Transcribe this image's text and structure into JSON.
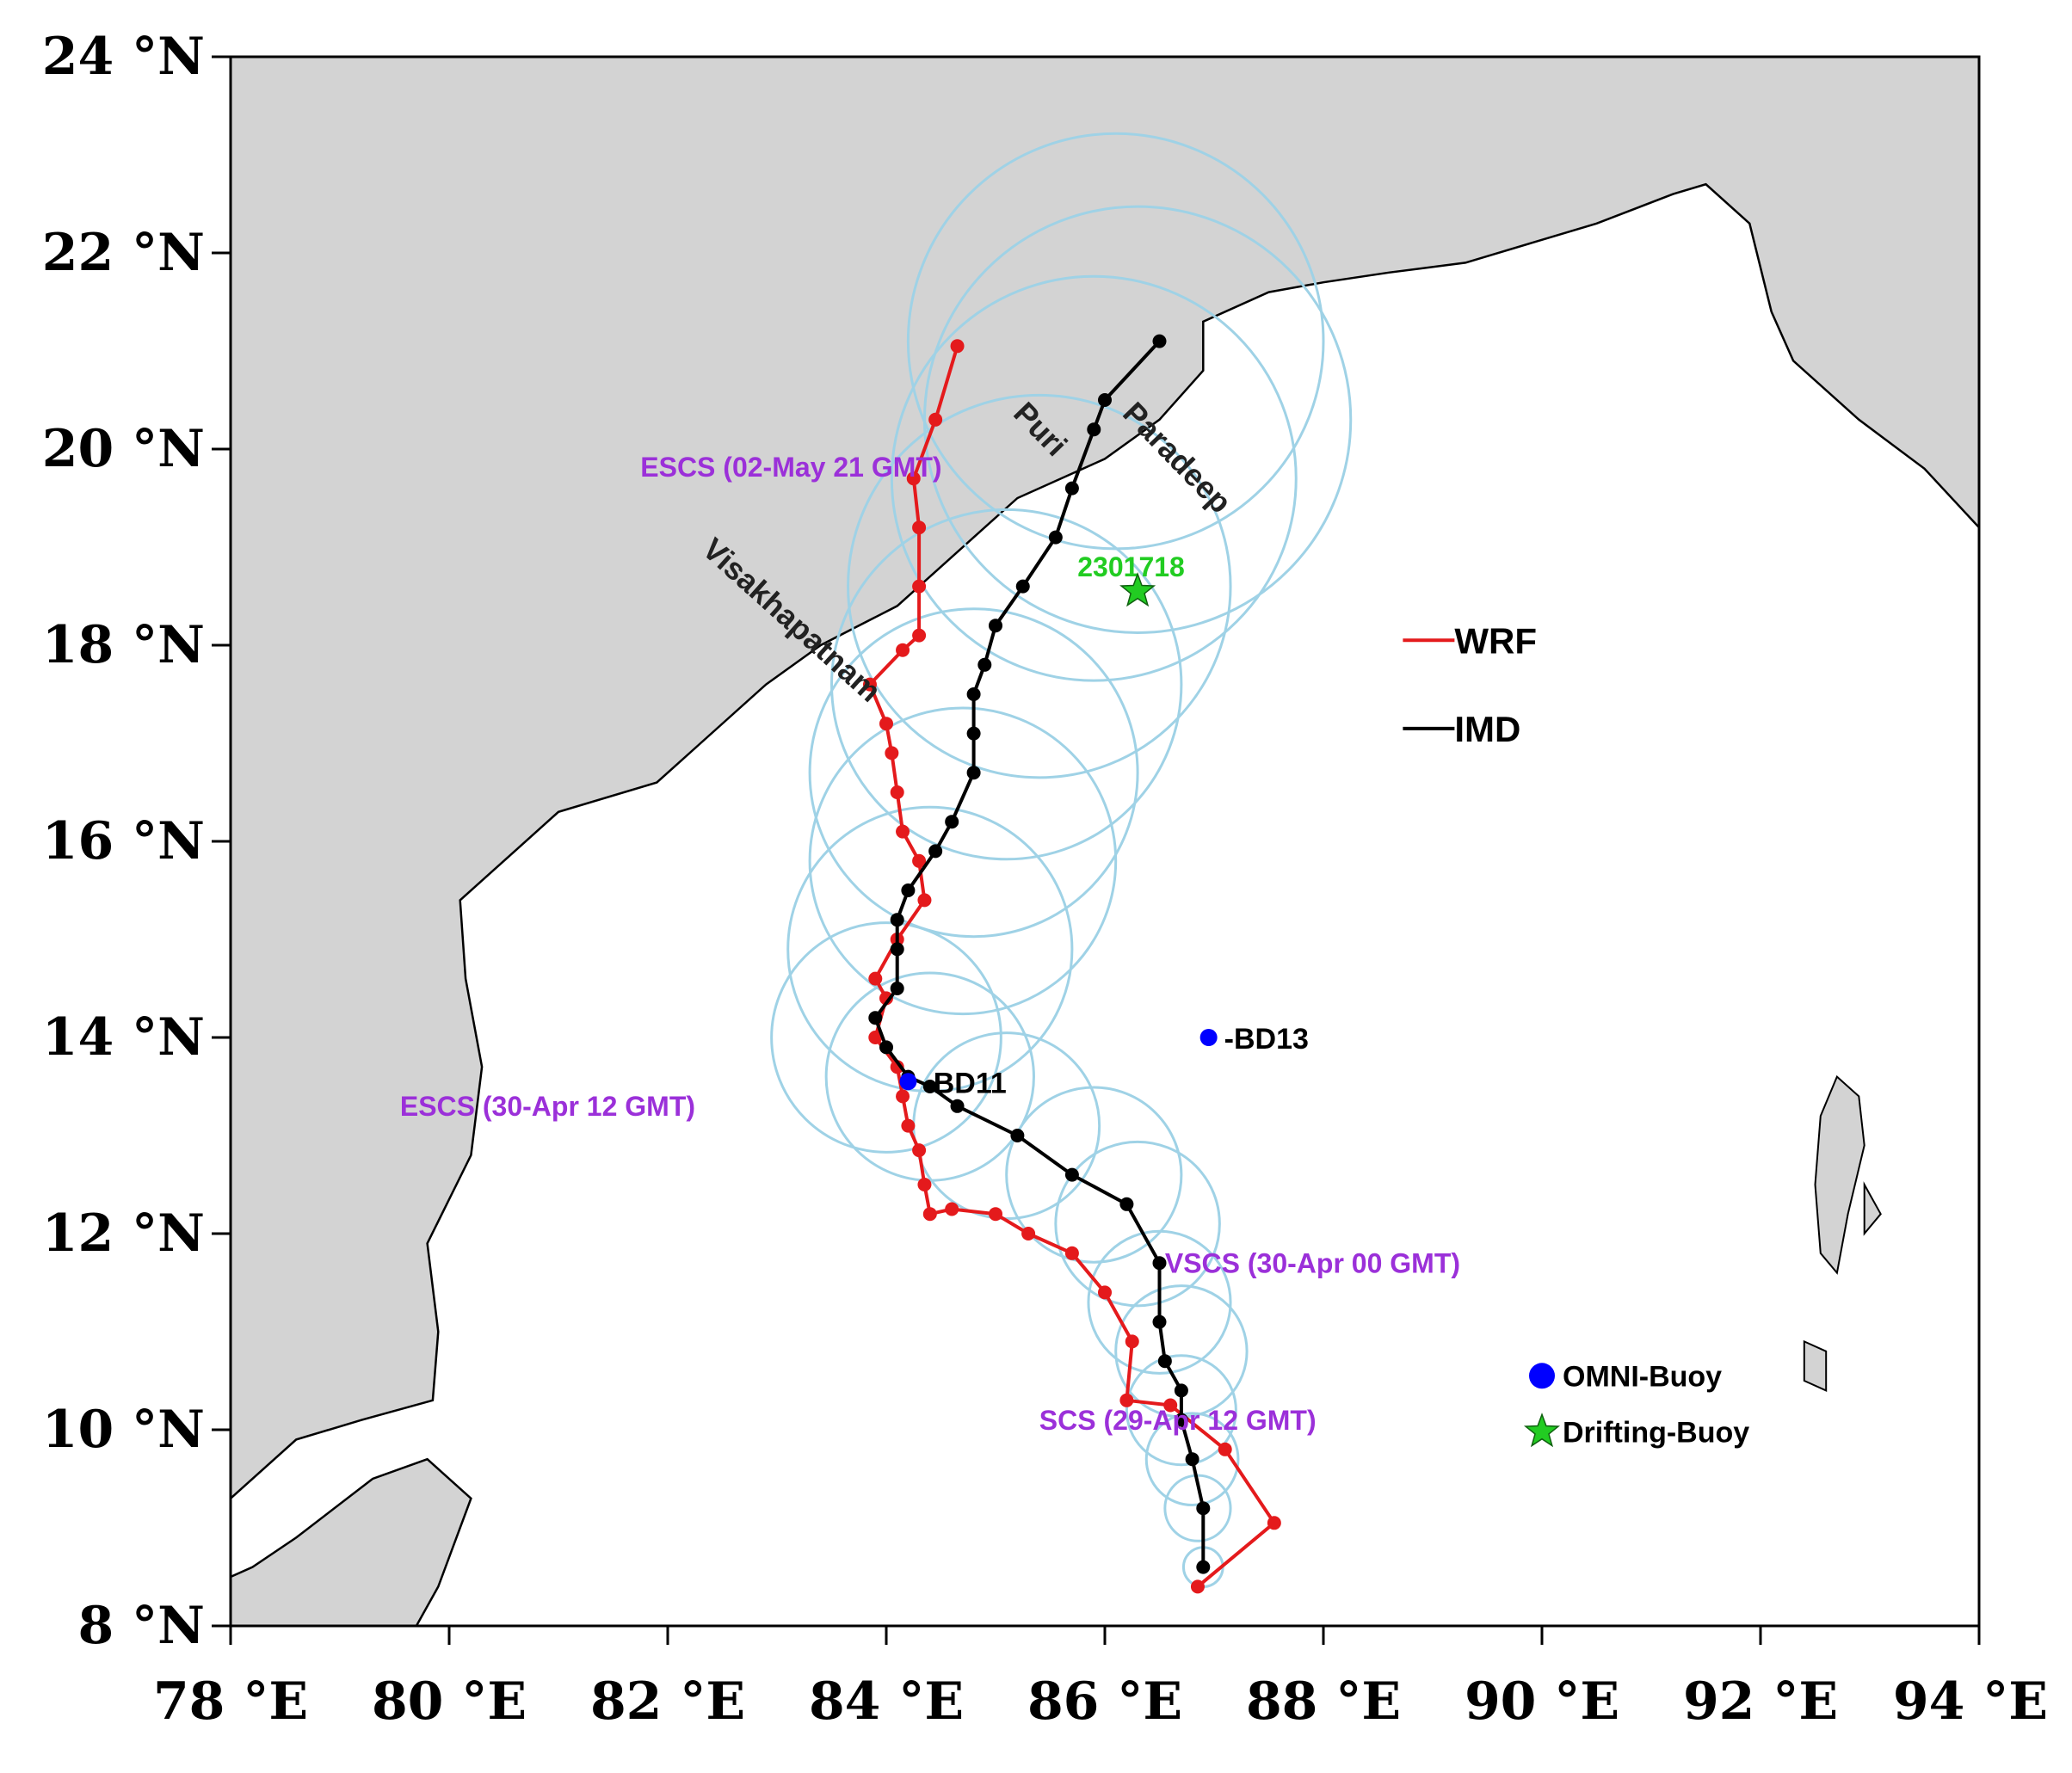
{
  "map": {
    "extent": {
      "lon": [
        78,
        94
      ],
      "lat": [
        8,
        24
      ]
    },
    "lat_ticks": [
      {
        "value": 8,
        "label": "8 °N"
      },
      {
        "value": 10,
        "label": "10 °N"
      },
      {
        "value": 12,
        "label": "12 °N"
      },
      {
        "value": 14,
        "label": "14 °N"
      },
      {
        "value": 16,
        "label": "16 °N"
      },
      {
        "value": 18,
        "label": "18 °N"
      },
      {
        "value": 20,
        "label": "20 °N"
      },
      {
        "value": 22,
        "label": "22 °N"
      },
      {
        "value": 24,
        "label": "24 °N"
      }
    ],
    "lon_ticks": [
      {
        "value": 78,
        "label": "78 °E"
      },
      {
        "value": 80,
        "label": "80 °E"
      },
      {
        "value": 82,
        "label": "82 °E"
      },
      {
        "value": 84,
        "label": "84 °E"
      },
      {
        "value": 86,
        "label": "86 °E"
      },
      {
        "value": 88,
        "label": "88 °E"
      },
      {
        "value": 90,
        "label": "90 °E"
      },
      {
        "value": 92,
        "label": "92 °E"
      },
      {
        "value": 94,
        "label": "94 °E"
      }
    ],
    "colors": {
      "land": "#d3d3d3",
      "sea": "#ffffff",
      "coast": "#000000",
      "uncertainty": "#9fd2e6"
    },
    "land_west": [
      [
        78,
        8
      ],
      [
        78,
        9.3
      ],
      [
        78.6,
        9.9
      ],
      [
        79.2,
        10.1
      ],
      [
        79.85,
        10.3
      ],
      [
        79.9,
        11.0
      ],
      [
        79.8,
        11.9
      ],
      [
        80.2,
        12.8
      ],
      [
        80.3,
        13.7
      ],
      [
        80.15,
        14.6
      ],
      [
        80.1,
        15.4
      ],
      [
        80.6,
        15.9
      ],
      [
        81.0,
        16.3
      ],
      [
        81.9,
        16.6
      ],
      [
        82.3,
        17.0
      ],
      [
        82.9,
        17.6
      ],
      [
        83.4,
        18.0
      ],
      [
        84.1,
        18.4
      ],
      [
        84.8,
        19.1
      ],
      [
        85.2,
        19.5
      ],
      [
        86.0,
        19.9
      ],
      [
        86.5,
        20.3
      ],
      [
        86.9,
        20.8
      ],
      [
        86.9,
        21.3
      ],
      [
        87.5,
        21.6
      ],
      [
        88.0,
        21.7
      ],
      [
        88.6,
        21.8
      ],
      [
        89.3,
        21.9
      ],
      [
        89.9,
        22.1
      ],
      [
        90.5,
        22.3
      ],
      [
        91.2,
        22.6
      ],
      [
        91.5,
        22.7
      ],
      [
        91.9,
        22.3
      ],
      [
        92.1,
        21.4
      ],
      [
        92.3,
        20.9
      ],
      [
        92.9,
        20.3
      ],
      [
        93.5,
        19.8
      ],
      [
        94.0,
        19.2
      ],
      [
        94,
        24
      ],
      [
        78,
        24
      ]
    ],
    "land_srilanka": [
      [
        78,
        8
      ],
      [
        79.7,
        8
      ],
      [
        79.9,
        8.4
      ],
      [
        80.2,
        9.3
      ],
      [
        79.8,
        9.7
      ],
      [
        79.3,
        9.5
      ],
      [
        78.6,
        8.9
      ],
      [
        78.2,
        8.6
      ],
      [
        78,
        8.5
      ]
    ],
    "andaman_islands": [
      [
        [
          92.7,
          13.6
        ],
        [
          92.9,
          13.4
        ],
        [
          92.95,
          12.9
        ],
        [
          92.8,
          12.2
        ],
        [
          92.7,
          11.6
        ],
        [
          92.55,
          11.8
        ],
        [
          92.5,
          12.5
        ],
        [
          92.55,
          13.2
        ]
      ],
      [
        [
          92.4,
          10.9
        ],
        [
          92.6,
          10.8
        ],
        [
          92.6,
          10.4
        ],
        [
          92.4,
          10.5
        ]
      ],
      [
        [
          92.95,
          12.5
        ],
        [
          93.1,
          12.2
        ],
        [
          92.95,
          12.0
        ]
      ]
    ],
    "uncertainty_circles": [
      {
        "lon": 86.9,
        "lat": 8.6,
        "r": 0.18
      },
      {
        "lon": 86.85,
        "lat": 9.2,
        "r": 0.3
      },
      {
        "lon": 86.8,
        "lat": 9.7,
        "r": 0.42
      },
      {
        "lon": 86.7,
        "lat": 10.2,
        "r": 0.5
      },
      {
        "lon": 86.7,
        "lat": 10.8,
        "r": 0.6
      },
      {
        "lon": 86.5,
        "lat": 11.3,
        "r": 0.65
      },
      {
        "lon": 86.3,
        "lat": 12.1,
        "r": 0.75
      },
      {
        "lon": 85.9,
        "lat": 12.6,
        "r": 0.8
      },
      {
        "lon": 85.1,
        "lat": 13.1,
        "r": 0.85
      },
      {
        "lon": 84.4,
        "lat": 13.6,
        "r": 0.95
      },
      {
        "lon": 84.0,
        "lat": 14.0,
        "r": 1.05
      },
      {
        "lon": 84.4,
        "lat": 14.9,
        "r": 1.3
      },
      {
        "lon": 84.7,
        "lat": 15.8,
        "r": 1.4
      },
      {
        "lon": 84.8,
        "lat": 16.7,
        "r": 1.5
      },
      {
        "lon": 85.1,
        "lat": 17.6,
        "r": 1.6
      },
      {
        "lon": 85.4,
        "lat": 18.6,
        "r": 1.75
      },
      {
        "lon": 85.9,
        "lat": 19.7,
        "r": 1.85
      },
      {
        "lon": 86.3,
        "lat": 20.3,
        "r": 1.95
      },
      {
        "lon": 86.1,
        "lat": 21.1,
        "r": 1.9
      }
    ],
    "tracks": [
      {
        "name": "WRF",
        "color": "#e41a1c",
        "points": [
          [
            86.85,
            8.4
          ],
          [
            87.55,
            9.05
          ],
          [
            87.1,
            9.8
          ],
          [
            86.6,
            10.25
          ],
          [
            86.2,
            10.3
          ],
          [
            86.25,
            10.9
          ],
          [
            86.0,
            11.4
          ],
          [
            85.7,
            11.8
          ],
          [
            85.3,
            12.0
          ],
          [
            85.0,
            12.2
          ],
          [
            84.6,
            12.25
          ],
          [
            84.4,
            12.2
          ],
          [
            84.35,
            12.5
          ],
          [
            84.3,
            12.85
          ],
          [
            84.2,
            13.1
          ],
          [
            84.15,
            13.4
          ],
          [
            84.1,
            13.7
          ],
          [
            83.9,
            14.0
          ],
          [
            84.0,
            14.4
          ],
          [
            83.9,
            14.6
          ],
          [
            84.1,
            15.0
          ],
          [
            84.35,
            15.4
          ],
          [
            84.3,
            15.8
          ],
          [
            84.15,
            16.1
          ],
          [
            84.1,
            16.5
          ],
          [
            84.05,
            16.9
          ],
          [
            84.0,
            17.2
          ],
          [
            83.85,
            17.6
          ],
          [
            84.15,
            17.95
          ],
          [
            84.3,
            18.1
          ],
          [
            84.3,
            18.6
          ],
          [
            84.3,
            19.2
          ],
          [
            84.25,
            19.7
          ],
          [
            84.45,
            20.3
          ],
          [
            84.65,
            21.05
          ]
        ]
      },
      {
        "name": "IMD",
        "color": "#000000",
        "points": [
          [
            86.9,
            8.6
          ],
          [
            86.9,
            9.2
          ],
          [
            86.8,
            9.7
          ],
          [
            86.7,
            10.1
          ],
          [
            86.7,
            10.4
          ],
          [
            86.55,
            10.7
          ],
          [
            86.5,
            11.1
          ],
          [
            86.5,
            11.7
          ],
          [
            86.2,
            12.3
          ],
          [
            85.7,
            12.6
          ],
          [
            85.2,
            13.0
          ],
          [
            84.65,
            13.3
          ],
          [
            84.4,
            13.5
          ],
          [
            84.2,
            13.6
          ],
          [
            84.0,
            13.9
          ],
          [
            83.9,
            14.2
          ],
          [
            84.1,
            14.5
          ],
          [
            84.1,
            14.9
          ],
          [
            84.1,
            15.2
          ],
          [
            84.2,
            15.5
          ],
          [
            84.45,
            15.9
          ],
          [
            84.6,
            16.2
          ],
          [
            84.8,
            16.7
          ],
          [
            84.8,
            17.1
          ],
          [
            84.8,
            17.5
          ],
          [
            84.9,
            17.8
          ],
          [
            85.0,
            18.2
          ],
          [
            85.25,
            18.6
          ],
          [
            85.55,
            19.1
          ],
          [
            85.7,
            19.6
          ],
          [
            85.9,
            20.2
          ],
          [
            86.0,
            20.5
          ],
          [
            86.5,
            21.1
          ]
        ]
      }
    ],
    "place_labels": [
      {
        "text": "Puri",
        "lon": 85.15,
        "lat": 20.35,
        "angle": 46
      },
      {
        "text": "Paradeep",
        "lon": 86.15,
        "lat": 20.35,
        "angle": 46
      },
      {
        "text": "Visakhapatnam",
        "lon": 82.3,
        "lat": 18.95,
        "angle": 42
      }
    ],
    "event_labels": [
      {
        "text": "ESCS  (02-May  21 GMT)",
        "lon": 81.75,
        "lat": 19.72,
        "color": "#9b30d9"
      },
      {
        "text": "ESCS (30-Apr 12 GMT)",
        "lon": 79.55,
        "lat": 13.2,
        "color": "#9b30d9"
      },
      {
        "text": "VSCS (30-Apr 00 GMT)",
        "lon": 86.55,
        "lat": 11.6,
        "color": "#9b30d9"
      },
      {
        "text": "SCS (29-Apr 12 GMT)",
        "lon": 85.4,
        "lat": 10.0,
        "color": "#9b30d9"
      },
      {
        "text": "2301718",
        "lon": 85.75,
        "lat": 18.7,
        "color": "#22cc22"
      }
    ],
    "buoys": [
      {
        "label": "-BD13",
        "lon": 86.95,
        "lat": 14.0,
        "type": "omni",
        "small": true
      },
      {
        "label": "-BD11",
        "lon": 84.2,
        "lat": 13.55,
        "type": "omni",
        "small": true
      },
      {
        "label": "2301718",
        "lon": 86.3,
        "lat": 18.55,
        "type": "drifting",
        "show_label": false
      }
    ],
    "legend": {
      "tracks": [
        {
          "label": "WRF",
          "color": "#e41a1c",
          "lon": 89.2,
          "lat": 18.05
        },
        {
          "label": "IMD",
          "color": "#000000",
          "lon": 89.2,
          "lat": 17.15
        }
      ],
      "markers": [
        {
          "label": "OMNI-Buoy",
          "type": "omni",
          "color": "#0000ff",
          "lon": 90.0,
          "lat": 10.55
        },
        {
          "label": "Drifting-Buoy",
          "type": "drifting",
          "color": "#22cc22",
          "lon": 90.0,
          "lat": 9.98
        }
      ]
    }
  }
}
